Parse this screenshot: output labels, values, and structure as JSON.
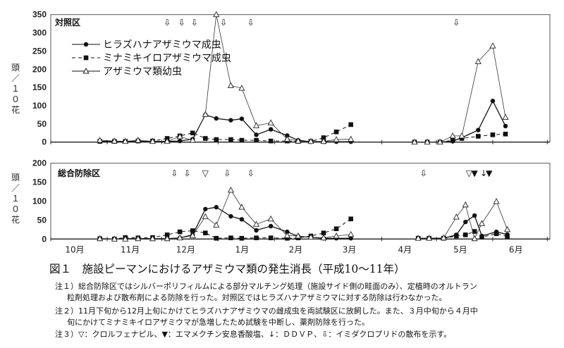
{
  "chart_data": [
    {
      "type": "line",
      "panel_label": "対照区",
      "ylabel": [
        "頭",
        "／",
        "１",
        "０",
        "花"
      ],
      "ylim": [
        0,
        350
      ],
      "yticks": [
        "0",
        "50",
        "100",
        "150",
        "200",
        "250",
        "300",
        "350"
      ],
      "x_unit": "days since Oct 1",
      "x": [
        27,
        35,
        41,
        48,
        56,
        64,
        71,
        78,
        85,
        91,
        99,
        105,
        113,
        121,
        130,
        136,
        143,
        150,
        157,
        165,
        200,
        207,
        214,
        221,
        226,
        235,
        243,
        250
      ],
      "series": [
        {
          "name": "ヒラズハナアザミウマ成虫",
          "style": "solid-circle",
          "values": [
            2,
            2,
            2,
            3,
            2,
            2,
            3,
            8,
            75,
            65,
            60,
            64,
            20,
            35,
            18,
            5,
            1,
            1,
            1,
            1,
            0,
            0,
            0,
            2,
            12,
            33,
            113,
            44
          ]
        },
        {
          "name": "ミナミキイロアザミウマ成虫",
          "style": "dashed-square",
          "values": [
            2,
            2,
            2,
            3,
            3,
            10,
            17,
            25,
            10,
            7,
            7,
            5,
            5,
            3,
            3,
            2,
            2,
            12,
            28,
            48,
            0,
            0,
            0,
            5,
            10,
            16,
            20,
            22
          ]
        },
        {
          "name": "アザミウマ類幼虫",
          "style": "thin-triangle",
          "values": [
            5,
            3,
            2,
            5,
            2,
            2,
            15,
            5,
            76,
            350,
            155,
            148,
            45,
            53,
            8,
            3,
            2,
            2,
            7,
            8,
            0,
            0,
            0,
            17,
            17,
            221,
            264,
            68
          ]
        }
      ],
      "treatments": [
        {
          "symbol": "⇩",
          "day": 64
        },
        {
          "symbol": "⇩",
          "day": 72
        },
        {
          "symbol": "⇩",
          "day": 79
        },
        {
          "symbol": "⇩",
          "day": 95
        },
        {
          "symbol": "⇩",
          "day": 110
        },
        {
          "symbol": "⇩",
          "day": 223
        }
      ],
      "legend_position": "top-left"
    },
    {
      "type": "line",
      "panel_label": "総合防除区",
      "ylabel": [
        "頭",
        "／",
        "１",
        "０",
        "花"
      ],
      "ylim": [
        0,
        200
      ],
      "yticks": [
        "0",
        "50",
        "100",
        "150",
        "200"
      ],
      "x_unit": "days since Oct 1",
      "xticks": [
        "10月",
        "11月",
        "12月",
        "1月",
        "2月",
        "3月",
        "4月",
        "5月",
        "6月"
      ],
      "x": [
        27,
        35,
        41,
        48,
        56,
        64,
        71,
        78,
        85,
        91,
        99,
        105,
        113,
        121,
        130,
        136,
        143,
        150,
        157,
        165,
        202,
        208,
        216,
        223,
        228,
        233,
        237,
        245,
        251
      ],
      "series": [
        {
          "name": "ヒラズハナアザミウマ成虫",
          "style": "solid-circle",
          "values": [
            1,
            0,
            1,
            1,
            1,
            1,
            3,
            11,
            79,
            84,
            60,
            52,
            23,
            34,
            19,
            7,
            5,
            2,
            2,
            2,
            2,
            2,
            2,
            11,
            45,
            62,
            8,
            19,
            12
          ]
        },
        {
          "name": "ミナミキイロアザミウマ成虫",
          "style": "dashed-square",
          "values": [
            1,
            0,
            4,
            3,
            4,
            11,
            19,
            22,
            16,
            2,
            3,
            2,
            3,
            3,
            2,
            3,
            8,
            16,
            27,
            53,
            2,
            2,
            2,
            8,
            11,
            20,
            5,
            14,
            7
          ]
        },
        {
          "name": "アザミウマ類幼虫",
          "style": "thin-triangle",
          "values": [
            1,
            0,
            0,
            1,
            1,
            1,
            3,
            9,
            59,
            37,
            129,
            84,
            39,
            53,
            9,
            8,
            5,
            3,
            8,
            12,
            2,
            2,
            3,
            58,
            90,
            1,
            41,
            99,
            25
          ]
        }
      ],
      "treatments": [
        {
          "symbol": "⇩",
          "day": 68
        },
        {
          "symbol": "⇩",
          "day": 75
        },
        {
          "symbol": "▽",
          "day": 85
        },
        {
          "symbol": "⇩",
          "day": 97
        },
        {
          "symbol": "⇩",
          "day": 110
        },
        {
          "symbol": "⇩",
          "day": 205
        },
        {
          "symbol": "▽",
          "day": 230
        },
        {
          "symbol": "▼",
          "day": 233
        },
        {
          "symbol": "↓",
          "day": 238
        },
        {
          "symbol": "▼",
          "day": 241
        }
      ]
    }
  ],
  "caption": "図１　施設ピーマンにおけるアザミウマ類の発生消長（平成10～11年）",
  "notes": [
    "注１）総合防除区ではシルバーポリフィルムによる部分マルチング処理（施設サイド側の畦面のみ）、定植時のオルトラン",
    "粒剤処理および散布剤による防除を行った。対照区ではヒラズハナアザミウマに対する防除は行わなかった。",
    "注２）11月下旬から12月上旬にかけてヒラズハナアザミウマの雌成虫を両試験区に放飼した。また、３月中旬から４月中",
    "旬にかけてミナミキイロアザミウマが急増したため試験を中断し、薬剤防除を行った。",
    "注３）▽：クロルフェナピル、▼：エマメクチン安息香酸塩、↓：ＤＤＶＰ、⇩：イミダクロプリドの散布を示す。"
  ]
}
